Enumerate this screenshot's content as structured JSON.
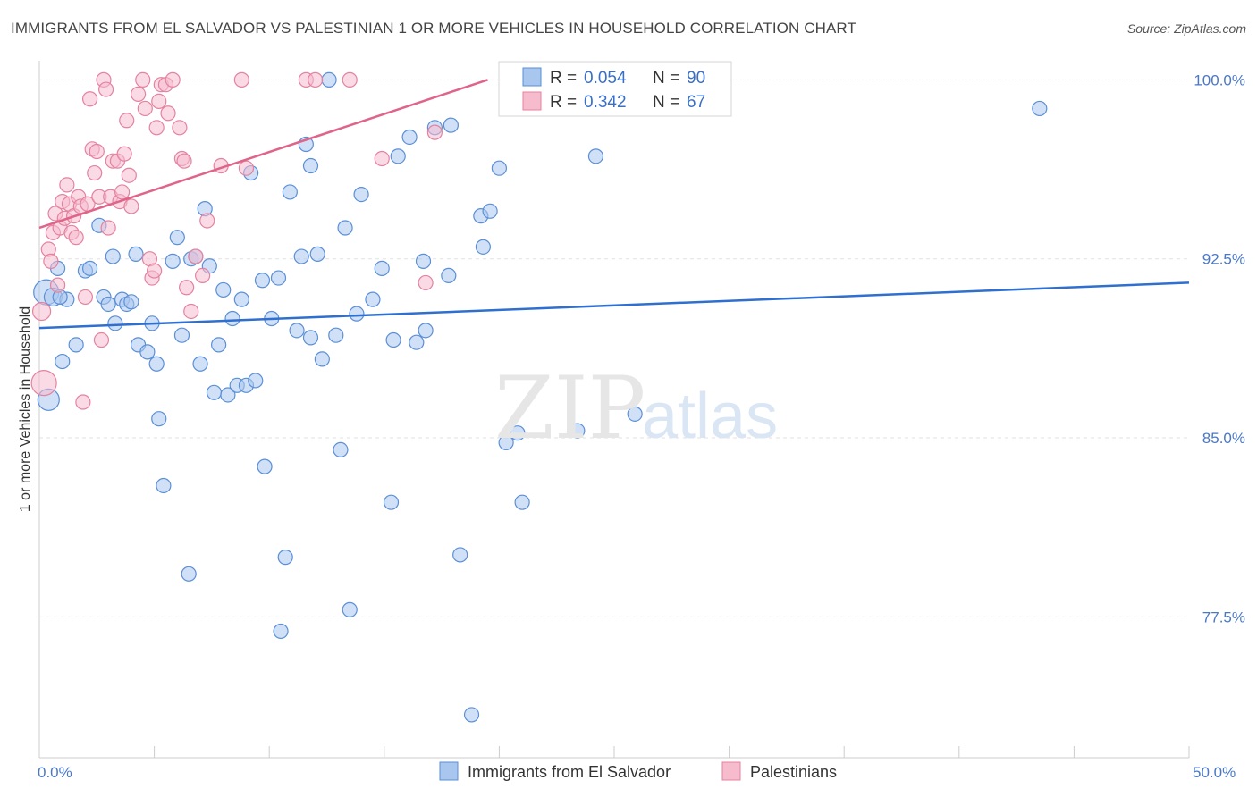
{
  "header": {
    "title": "IMMIGRANTS FROM EL SALVADOR VS PALESTINIAN 1 OR MORE VEHICLES IN HOUSEHOLD CORRELATION CHART",
    "source": "Source: ZipAtlas.com"
  },
  "watermark": {
    "zip": "ZIP",
    "atlas": "atlas"
  },
  "colors": {
    "blue": "#5b8fd6",
    "blue_fill": "#a9c6ee",
    "blue_line": "#2f6fcf",
    "pink": "#e4829f",
    "pink_fill": "#f6bccd",
    "pink_line": "#e0648a",
    "tick_text": "#4a78c8"
  },
  "chart_data": {
    "type": "scatter",
    "title": "IMMIGRANTS FROM EL SALVADOR VS PALESTINIAN 1 OR MORE VEHICLES IN HOUSEHOLD CORRELATION CHART",
    "xlabel": "",
    "ylabel": "1 or more Vehicles in Household",
    "xlim": [
      0,
      50
    ],
    "ylim": [
      71.6,
      100.8
    ],
    "x_tick_labels": {
      "left": "0.0%",
      "right": "50.0%"
    },
    "y_ticks": [
      {
        "value": 100.0,
        "label": "100.0%"
      },
      {
        "value": 92.5,
        "label": "92.5%"
      },
      {
        "value": 85.0,
        "label": "85.0%"
      },
      {
        "value": 77.5,
        "label": "77.5%"
      }
    ],
    "legend": [
      {
        "r_label": "R =",
        "r_value": "0.054",
        "n_label": "N =",
        "n_value": "90"
      },
      {
        "r_label": "R =",
        "r_value": "0.342",
        "n_label": "N =",
        "n_value": "67"
      }
    ],
    "series": [
      {
        "name": "Immigrants from El Salvador",
        "trend": {
          "x0": 0,
          "y0": 89.6,
          "x1": 50,
          "y1": 91.5
        },
        "points": [
          [
            0.3,
            91.1,
            14
          ],
          [
            0.4,
            86.6,
            12
          ],
          [
            0.6,
            90.9,
            10
          ],
          [
            0.8,
            92.1,
            8
          ],
          [
            1.0,
            88.2,
            8
          ],
          [
            1.2,
            90.8,
            8
          ],
          [
            1.6,
            88.9,
            8
          ],
          [
            2.0,
            92.0,
            8
          ],
          [
            2.2,
            92.1,
            8
          ],
          [
            2.6,
            93.9,
            8
          ],
          [
            2.8,
            90.9,
            8
          ],
          [
            3.0,
            90.6,
            8
          ],
          [
            3.2,
            92.6,
            8
          ],
          [
            3.3,
            89.8,
            8
          ],
          [
            3.6,
            90.8,
            8
          ],
          [
            3.8,
            90.6,
            8
          ],
          [
            4.0,
            90.7,
            8
          ],
          [
            4.2,
            92.7,
            8
          ],
          [
            4.3,
            88.9,
            8
          ],
          [
            4.7,
            88.6,
            8
          ],
          [
            4.9,
            89.8,
            8
          ],
          [
            5.1,
            88.1,
            8
          ],
          [
            5.2,
            85.8,
            8
          ],
          [
            5.4,
            83.0,
            8
          ],
          [
            5.8,
            92.4,
            8
          ],
          [
            6.0,
            93.4,
            8
          ],
          [
            6.2,
            89.3,
            8
          ],
          [
            6.5,
            79.3,
            8
          ],
          [
            6.6,
            92.5,
            8
          ],
          [
            6.8,
            92.6,
            8
          ],
          [
            7.0,
            88.1,
            8
          ],
          [
            7.2,
            94.6,
            8
          ],
          [
            7.4,
            92.2,
            8
          ],
          [
            7.6,
            86.9,
            8
          ],
          [
            7.8,
            88.9,
            8
          ],
          [
            8.0,
            91.2,
            8
          ],
          [
            8.2,
            86.8,
            8
          ],
          [
            8.4,
            90.0,
            8
          ],
          [
            8.6,
            87.2,
            8
          ],
          [
            8.8,
            90.8,
            8
          ],
          [
            9.0,
            87.2,
            8
          ],
          [
            9.2,
            96.1,
            8
          ],
          [
            9.4,
            87.4,
            8
          ],
          [
            9.7,
            91.6,
            8
          ],
          [
            9.8,
            83.8,
            8
          ],
          [
            10.1,
            90.0,
            8
          ],
          [
            10.4,
            91.7,
            8
          ],
          [
            10.7,
            80.0,
            8
          ],
          [
            10.5,
            76.9,
            8
          ],
          [
            10.9,
            95.3,
            8
          ],
          [
            11.2,
            89.5,
            8
          ],
          [
            11.4,
            92.6,
            8
          ],
          [
            11.6,
            97.3,
            8
          ],
          [
            11.8,
            89.2,
            8
          ],
          [
            11.8,
            96.4,
            8
          ],
          [
            12.1,
            92.7,
            8
          ],
          [
            12.3,
            88.3,
            8
          ],
          [
            12.6,
            100.0,
            8
          ],
          [
            12.9,
            89.3,
            8
          ],
          [
            13.1,
            84.5,
            8
          ],
          [
            13.3,
            93.8,
            8
          ],
          [
            13.5,
            77.8,
            8
          ],
          [
            13.8,
            90.2,
            8
          ],
          [
            14.0,
            95.2,
            8
          ],
          [
            14.5,
            90.8,
            8
          ],
          [
            14.9,
            92.1,
            8
          ],
          [
            15.4,
            89.1,
            8
          ],
          [
            15.6,
            96.8,
            8
          ],
          [
            15.3,
            82.3,
            8
          ],
          [
            16.1,
            97.6,
            8
          ],
          [
            16.4,
            89.0,
            8
          ],
          [
            16.7,
            92.4,
            8
          ],
          [
            16.8,
            89.5,
            8
          ],
          [
            17.2,
            98.0,
            8
          ],
          [
            17.8,
            91.8,
            8
          ],
          [
            17.9,
            98.1,
            8
          ],
          [
            18.3,
            80.1,
            8
          ],
          [
            18.8,
            73.4,
            8
          ],
          [
            19.2,
            94.3,
            8
          ],
          [
            19.3,
            93.0,
            8
          ],
          [
            19.6,
            94.5,
            8
          ],
          [
            20.0,
            96.3,
            8
          ],
          [
            20.3,
            84.8,
            8
          ],
          [
            20.8,
            85.2,
            8
          ],
          [
            21.0,
            82.3,
            8
          ],
          [
            23.4,
            85.3,
            8
          ],
          [
            24.2,
            96.8,
            8
          ],
          [
            25.9,
            86.0,
            8
          ],
          [
            43.5,
            98.8,
            8
          ],
          [
            0.9,
            90.9,
            8
          ]
        ]
      },
      {
        "name": "Palestinians",
        "trend": {
          "x0": 0,
          "y0": 93.8,
          "x1": 19.5,
          "y1": 100.0
        },
        "points": [
          [
            0.1,
            90.3,
            10
          ],
          [
            0.2,
            87.3,
            14
          ],
          [
            0.4,
            92.9,
            8
          ],
          [
            0.5,
            92.4,
            8
          ],
          [
            0.6,
            93.6,
            8
          ],
          [
            0.7,
            94.4,
            8
          ],
          [
            0.8,
            91.4,
            8
          ],
          [
            0.9,
            93.8,
            8
          ],
          [
            1.0,
            94.9,
            8
          ],
          [
            1.1,
            94.2,
            8
          ],
          [
            1.2,
            95.6,
            8
          ],
          [
            1.3,
            94.8,
            8
          ],
          [
            1.4,
            93.6,
            8
          ],
          [
            1.5,
            94.3,
            8
          ],
          [
            1.6,
            93.4,
            8
          ],
          [
            1.7,
            95.1,
            8
          ],
          [
            1.8,
            94.7,
            8
          ],
          [
            1.9,
            86.5,
            8
          ],
          [
            2.0,
            90.9,
            8
          ],
          [
            2.1,
            94.8,
            8
          ],
          [
            2.2,
            99.2,
            8
          ],
          [
            2.3,
            97.1,
            8
          ],
          [
            2.4,
            96.1,
            8
          ],
          [
            2.5,
            97.0,
            8
          ],
          [
            2.6,
            95.1,
            8
          ],
          [
            2.7,
            89.1,
            8
          ],
          [
            2.8,
            100.0,
            8
          ],
          [
            2.9,
            99.6,
            8
          ],
          [
            3.0,
            93.8,
            8
          ],
          [
            3.1,
            95.1,
            8
          ],
          [
            3.2,
            96.6,
            8
          ],
          [
            3.4,
            96.6,
            8
          ],
          [
            3.5,
            94.9,
            8
          ],
          [
            3.6,
            95.3,
            8
          ],
          [
            3.7,
            96.9,
            8
          ],
          [
            3.8,
            98.3,
            8
          ],
          [
            3.9,
            96.0,
            8
          ],
          [
            4.0,
            94.7,
            8
          ],
          [
            4.3,
            99.4,
            8
          ],
          [
            4.5,
            100.0,
            8
          ],
          [
            4.6,
            98.8,
            8
          ],
          [
            4.8,
            92.5,
            8
          ],
          [
            4.9,
            91.7,
            8
          ],
          [
            5.0,
            92.0,
            8
          ],
          [
            5.1,
            98.0,
            8
          ],
          [
            5.2,
            99.1,
            8
          ],
          [
            5.3,
            99.8,
            8
          ],
          [
            5.5,
            99.8,
            8
          ],
          [
            5.6,
            98.6,
            8
          ],
          [
            5.8,
            100.0,
            8
          ],
          [
            6.1,
            98.0,
            8
          ],
          [
            6.2,
            96.7,
            8
          ],
          [
            6.3,
            96.6,
            8
          ],
          [
            6.4,
            91.3,
            8
          ],
          [
            6.6,
            90.3,
            8
          ],
          [
            6.8,
            92.6,
            8
          ],
          [
            7.1,
            91.8,
            8
          ],
          [
            7.3,
            94.1,
            8
          ],
          [
            7.9,
            96.4,
            8
          ],
          [
            9.0,
            96.3,
            8
          ],
          [
            11.6,
            100.0,
            8
          ],
          [
            12.0,
            100.0,
            8
          ],
          [
            13.5,
            100.0,
            8
          ],
          [
            14.9,
            96.7,
            8
          ],
          [
            16.8,
            91.5,
            8
          ],
          [
            17.2,
            97.8,
            8
          ],
          [
            8.8,
            100.0,
            8
          ]
        ]
      }
    ]
  }
}
